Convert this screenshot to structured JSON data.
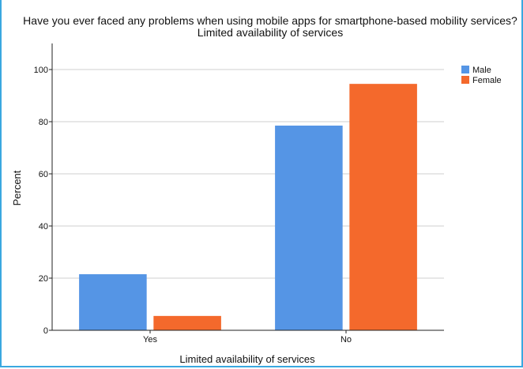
{
  "chart_data": {
    "type": "bar",
    "title": "Have you ever faced any problems when using mobile apps for smartphone-based mobility services?",
    "subtitle": "Limited availability of services",
    "xlabel": "Limited availability of services",
    "ylabel": "Percent",
    "categories": [
      "Yes",
      "No"
    ],
    "series": [
      {
        "name": "Male",
        "values": [
          21.5,
          78.5
        ],
        "color": "#5595e5"
      },
      {
        "name": "Female",
        "values": [
          5.5,
          94.5
        ],
        "color": "#f4692c"
      }
    ],
    "ylim": [
      0,
      110
    ],
    "yticks": [
      0,
      20,
      40,
      60,
      80,
      100
    ],
    "grid": true,
    "legend": "top-right"
  }
}
